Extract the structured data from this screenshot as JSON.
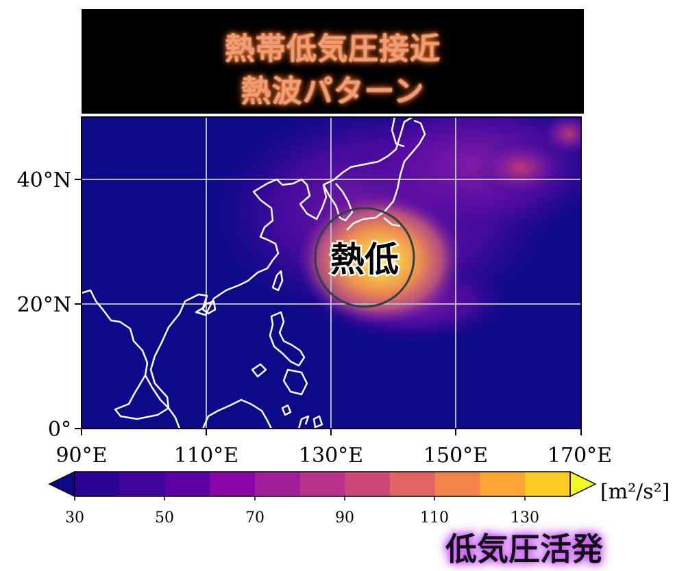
{
  "title": {
    "line1": "熱帯低気圧接近",
    "line2": "熱波パターン"
  },
  "map": {
    "x_ticks": [
      "90°E",
      "110°E",
      "130°E",
      "150°E",
      "170°E"
    ],
    "y_ticks": [
      "40°N",
      "20°N",
      "0°"
    ],
    "annotation": "熱低",
    "background_color": "#0d0a8a",
    "coastline_color": "#ffffff",
    "grid_color": "#b8b8b8"
  },
  "colorbar": {
    "ticks": [
      "30",
      "50",
      "70",
      "90",
      "110",
      "130"
    ],
    "unit": "[m²/s²]",
    "colors": [
      "#0d0887",
      "#2a0593",
      "#41049d",
      "#5d01a6",
      "#8606a6",
      "#a21d9a",
      "#b83289",
      "#cc4778",
      "#e16462",
      "#f2844b",
      "#fca636",
      "#fcce25",
      "#f0f921"
    ]
  },
  "bottom_note": "低気圧活発",
  "chart_data": {
    "type": "heatmap",
    "x_range": [
      "90°E",
      "170°E"
    ],
    "y_range": [
      "0°",
      "50°N"
    ],
    "colorbar_range": [
      30,
      140
    ],
    "units": "[m²/s²]",
    "features": [
      {
        "name": "熱低",
        "lon": 135,
        "lat": 27,
        "value": 135
      }
    ]
  }
}
